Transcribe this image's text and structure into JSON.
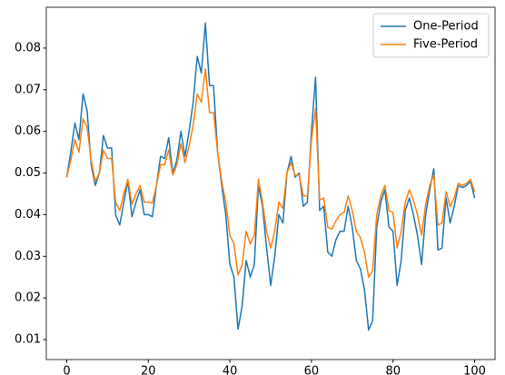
{
  "chart_data": {
    "type": "line",
    "x": [
      0,
      1,
      2,
      3,
      4,
      5,
      6,
      7,
      8,
      9,
      10,
      11,
      12,
      13,
      14,
      15,
      16,
      17,
      18,
      19,
      20,
      21,
      22,
      23,
      24,
      25,
      26,
      27,
      28,
      29,
      30,
      31,
      32,
      33,
      34,
      35,
      36,
      37,
      38,
      39,
      40,
      41,
      42,
      43,
      44,
      45,
      46,
      47,
      48,
      49,
      50,
      51,
      52,
      53,
      54,
      55,
      56,
      57,
      58,
      59,
      60,
      61,
      62,
      63,
      64,
      65,
      66,
      67,
      68,
      69,
      70,
      71,
      72,
      73,
      74,
      75,
      76,
      77,
      78,
      79,
      80,
      81,
      82,
      83,
      84,
      85,
      86,
      87,
      88,
      89,
      90,
      91,
      92,
      93,
      94,
      95,
      96,
      97,
      98,
      99,
      100
    ],
    "series": [
      {
        "name": "One-Period",
        "color": "#1f77b4",
        "values": [
          0.049,
          0.055,
          0.062,
          0.058,
          0.069,
          0.065,
          0.052,
          0.047,
          0.05,
          0.059,
          0.056,
          0.056,
          0.04,
          0.0375,
          0.043,
          0.048,
          0.0395,
          0.043,
          0.046,
          0.04,
          0.04,
          0.0395,
          0.047,
          0.054,
          0.0535,
          0.0585,
          0.05,
          0.053,
          0.06,
          0.054,
          0.06,
          0.067,
          0.078,
          0.074,
          0.086,
          0.071,
          0.071,
          0.055,
          0.047,
          0.04,
          0.028,
          0.025,
          0.0125,
          0.018,
          0.029,
          0.025,
          0.028,
          0.047,
          0.042,
          0.032,
          0.023,
          0.03,
          0.04,
          0.038,
          0.05,
          0.054,
          0.049,
          0.05,
          0.042,
          0.043,
          0.06,
          0.073,
          0.041,
          0.042,
          0.031,
          0.03,
          0.034,
          0.036,
          0.036,
          0.042,
          0.037,
          0.029,
          0.027,
          0.022,
          0.0123,
          0.0145,
          0.037,
          0.043,
          0.046,
          0.037,
          0.036,
          0.023,
          0.029,
          0.041,
          0.044,
          0.04,
          0.035,
          0.028,
          0.04,
          0.046,
          0.051,
          0.0315,
          0.032,
          0.044,
          0.038,
          0.042,
          0.047,
          0.0465,
          0.047,
          0.048,
          0.044
        ]
      },
      {
        "name": "Five-Period",
        "color": "#ff7f0e",
        "values": [
          0.049,
          0.053,
          0.058,
          0.055,
          0.063,
          0.061,
          0.053,
          0.048,
          0.05,
          0.0555,
          0.0535,
          0.0535,
          0.043,
          0.041,
          0.045,
          0.0485,
          0.0425,
          0.045,
          0.047,
          0.043,
          0.043,
          0.0428,
          0.047,
          0.052,
          0.052,
          0.0555,
          0.0495,
          0.052,
          0.057,
          0.0525,
          0.0565,
          0.0615,
          0.069,
          0.067,
          0.075,
          0.0645,
          0.0645,
          0.055,
          0.048,
          0.043,
          0.035,
          0.033,
          0.0255,
          0.028,
          0.036,
          0.033,
          0.035,
          0.0485,
          0.043,
          0.036,
          0.032,
          0.036,
          0.043,
          0.0415,
          0.05,
          0.0525,
          0.0495,
          0.0495,
          0.0445,
          0.0445,
          0.058,
          0.0655,
          0.0435,
          0.044,
          0.037,
          0.0365,
          0.0385,
          0.04,
          0.0405,
          0.0445,
          0.041,
          0.036,
          0.0345,
          0.031,
          0.025,
          0.0265,
          0.04,
          0.0445,
          0.047,
          0.041,
          0.0405,
          0.032,
          0.036,
          0.043,
          0.046,
          0.0435,
          0.04,
          0.035,
          0.0425,
          0.047,
          0.0495,
          0.0375,
          0.038,
          0.0455,
          0.042,
          0.044,
          0.0475,
          0.047,
          0.0475,
          0.0485,
          0.0455
        ]
      }
    ],
    "xlim": [
      -5,
      105
    ],
    "ylim": [
      0.0052,
      0.0898
    ],
    "xticks": [
      0,
      20,
      40,
      60,
      80,
      100
    ],
    "yticks": [
      0.01,
      0.02,
      0.03,
      0.04,
      0.05,
      0.06,
      0.07,
      0.08
    ],
    "legend": "upper right"
  }
}
